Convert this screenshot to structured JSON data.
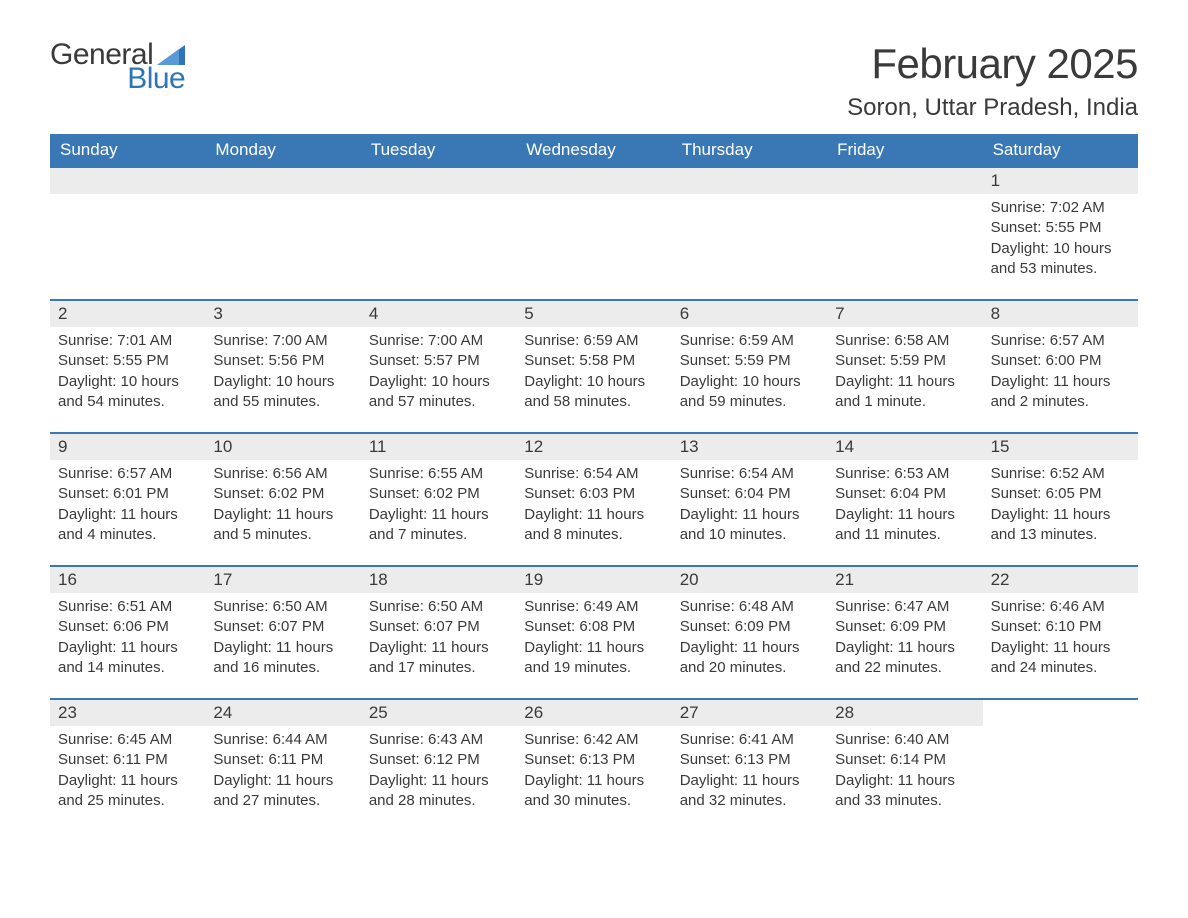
{
  "logo": {
    "general": "General",
    "blue": "Blue"
  },
  "title": "February 2025",
  "location": "Soron, Uttar Pradesh, India",
  "colors": {
    "header_bg": "#3a78b5",
    "header_text": "#ffffff",
    "daynum_bg": "#ececec",
    "rule": "#3a78b5",
    "text": "#3a3a3a",
    "logo_blue": "#2e75b6"
  },
  "weekdays": [
    "Sunday",
    "Monday",
    "Tuesday",
    "Wednesday",
    "Thursday",
    "Friday",
    "Saturday"
  ],
  "first_day_index": 6,
  "days": [
    {
      "n": "1",
      "sunrise": "7:02 AM",
      "sunset": "5:55 PM",
      "daylight": "10 hours and 53 minutes."
    },
    {
      "n": "2",
      "sunrise": "7:01 AM",
      "sunset": "5:55 PM",
      "daylight": "10 hours and 54 minutes."
    },
    {
      "n": "3",
      "sunrise": "7:00 AM",
      "sunset": "5:56 PM",
      "daylight": "10 hours and 55 minutes."
    },
    {
      "n": "4",
      "sunrise": "7:00 AM",
      "sunset": "5:57 PM",
      "daylight": "10 hours and 57 minutes."
    },
    {
      "n": "5",
      "sunrise": "6:59 AM",
      "sunset": "5:58 PM",
      "daylight": "10 hours and 58 minutes."
    },
    {
      "n": "6",
      "sunrise": "6:59 AM",
      "sunset": "5:59 PM",
      "daylight": "10 hours and 59 minutes."
    },
    {
      "n": "7",
      "sunrise": "6:58 AM",
      "sunset": "5:59 PM",
      "daylight": "11 hours and 1 minute."
    },
    {
      "n": "8",
      "sunrise": "6:57 AM",
      "sunset": "6:00 PM",
      "daylight": "11 hours and 2 minutes."
    },
    {
      "n": "9",
      "sunrise": "6:57 AM",
      "sunset": "6:01 PM",
      "daylight": "11 hours and 4 minutes."
    },
    {
      "n": "10",
      "sunrise": "6:56 AM",
      "sunset": "6:02 PM",
      "daylight": "11 hours and 5 minutes."
    },
    {
      "n": "11",
      "sunrise": "6:55 AM",
      "sunset": "6:02 PM",
      "daylight": "11 hours and 7 minutes."
    },
    {
      "n": "12",
      "sunrise": "6:54 AM",
      "sunset": "6:03 PM",
      "daylight": "11 hours and 8 minutes."
    },
    {
      "n": "13",
      "sunrise": "6:54 AM",
      "sunset": "6:04 PM",
      "daylight": "11 hours and 10 minutes."
    },
    {
      "n": "14",
      "sunrise": "6:53 AM",
      "sunset": "6:04 PM",
      "daylight": "11 hours and 11 minutes."
    },
    {
      "n": "15",
      "sunrise": "6:52 AM",
      "sunset": "6:05 PM",
      "daylight": "11 hours and 13 minutes."
    },
    {
      "n": "16",
      "sunrise": "6:51 AM",
      "sunset": "6:06 PM",
      "daylight": "11 hours and 14 minutes."
    },
    {
      "n": "17",
      "sunrise": "6:50 AM",
      "sunset": "6:07 PM",
      "daylight": "11 hours and 16 minutes."
    },
    {
      "n": "18",
      "sunrise": "6:50 AM",
      "sunset": "6:07 PM",
      "daylight": "11 hours and 17 minutes."
    },
    {
      "n": "19",
      "sunrise": "6:49 AM",
      "sunset": "6:08 PM",
      "daylight": "11 hours and 19 minutes."
    },
    {
      "n": "20",
      "sunrise": "6:48 AM",
      "sunset": "6:09 PM",
      "daylight": "11 hours and 20 minutes."
    },
    {
      "n": "21",
      "sunrise": "6:47 AM",
      "sunset": "6:09 PM",
      "daylight": "11 hours and 22 minutes."
    },
    {
      "n": "22",
      "sunrise": "6:46 AM",
      "sunset": "6:10 PM",
      "daylight": "11 hours and 24 minutes."
    },
    {
      "n": "23",
      "sunrise": "6:45 AM",
      "sunset": "6:11 PM",
      "daylight": "11 hours and 25 minutes."
    },
    {
      "n": "24",
      "sunrise": "6:44 AM",
      "sunset": "6:11 PM",
      "daylight": "11 hours and 27 minutes."
    },
    {
      "n": "25",
      "sunrise": "6:43 AM",
      "sunset": "6:12 PM",
      "daylight": "11 hours and 28 minutes."
    },
    {
      "n": "26",
      "sunrise": "6:42 AM",
      "sunset": "6:13 PM",
      "daylight": "11 hours and 30 minutes."
    },
    {
      "n": "27",
      "sunrise": "6:41 AM",
      "sunset": "6:13 PM",
      "daylight": "11 hours and 32 minutes."
    },
    {
      "n": "28",
      "sunrise": "6:40 AM",
      "sunset": "6:14 PM",
      "daylight": "11 hours and 33 minutes."
    }
  ],
  "labels": {
    "sunrise": "Sunrise: ",
    "sunset": "Sunset: ",
    "daylight": "Daylight: "
  }
}
